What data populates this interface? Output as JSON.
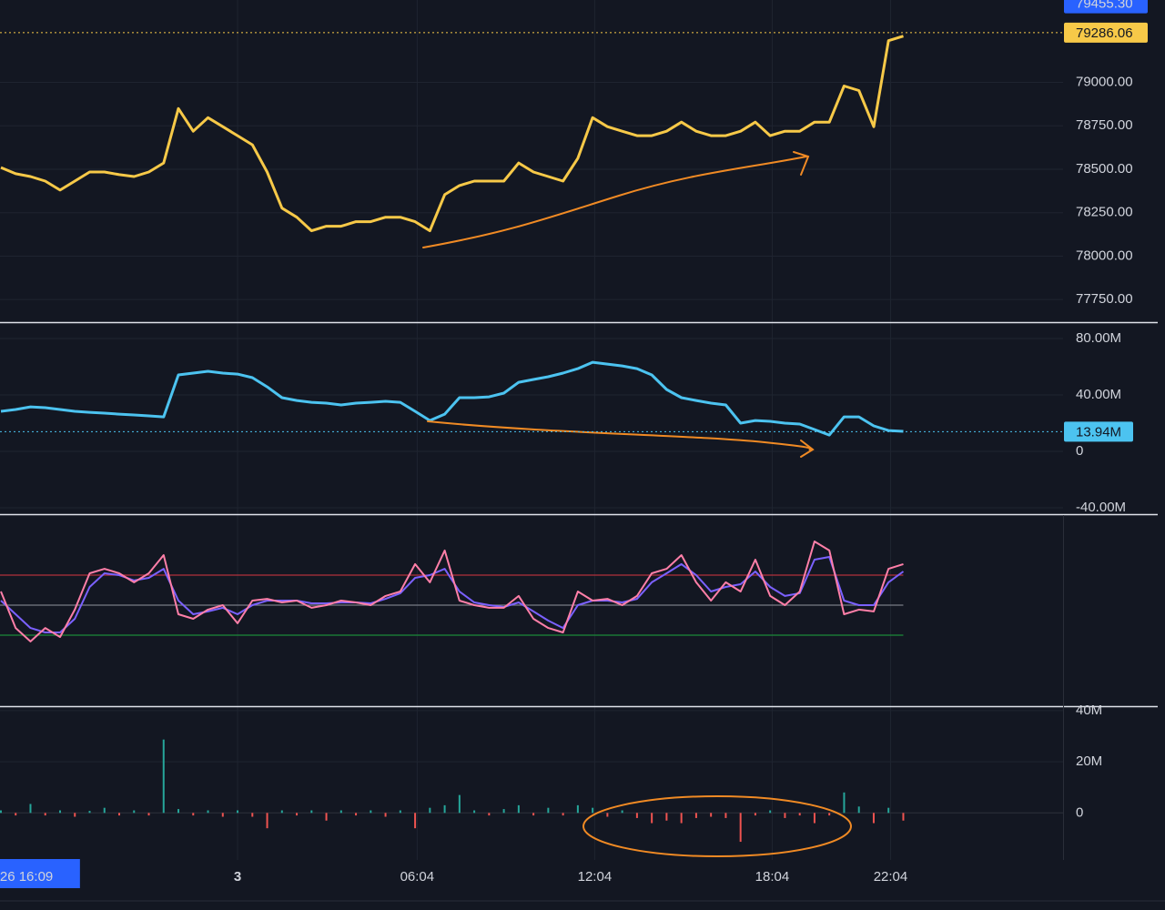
{
  "chart_data": [
    {
      "type": "line",
      "color": "#f7c948",
      "x": [
        -8,
        -7.5,
        -7,
        -6.5,
        -6,
        -5.5,
        -5,
        -4.5,
        -4,
        -3.5,
        -3,
        -2.5,
        -2,
        -1.5,
        -1,
        -0.5,
        0,
        0.5,
        1,
        1.5,
        2,
        2.5,
        3,
        3.5,
        4,
        4.5,
        5,
        5.5,
        6,
        6.5,
        7,
        7.5,
        8,
        8.5,
        9,
        9.5,
        10,
        10.5,
        11,
        11.5,
        12,
        12.5,
        13,
        13.5,
        14,
        14.5,
        15,
        15.5,
        16,
        16.5,
        17,
        17.5,
        18,
        18.5,
        19,
        19.5,
        20,
        20.5,
        21,
        21.5,
        22,
        22.5
      ],
      "values": [
        78510,
        78474,
        78458,
        78432,
        78380,
        78432,
        78484,
        78484,
        78469,
        78458,
        78484,
        78536,
        78849,
        78719,
        78797,
        78745,
        78693,
        78641,
        78484,
        78276,
        78224,
        78146,
        78172,
        78172,
        78198,
        78198,
        78224,
        78224,
        78198,
        78146,
        78354,
        78406,
        78432,
        78432,
        78432,
        78536,
        78484,
        78458,
        78432,
        78563,
        78797,
        78745,
        78719,
        78693,
        78693,
        78719,
        78771,
        78719,
        78693,
        78693,
        78719,
        78771,
        78693,
        78719,
        78719,
        78771,
        78771,
        78979,
        78953,
        78745,
        79240,
        79266
      ],
      "xlim": [
        -8.03,
        27.9
      ],
      "ylim": [
        77620,
        79474
      ],
      "yticks": [
        {
          "value": 77750,
          "label": "77750.00"
        },
        {
          "value": 78000,
          "label": "78000.00"
        },
        {
          "value": 78250,
          "label": "78250.00"
        },
        {
          "value": 78500,
          "label": "78500.00"
        },
        {
          "value": 78750,
          "label": "78750.00"
        },
        {
          "value": 79000,
          "label": "79000.00"
        }
      ],
      "grid": true,
      "current_value": 79286.06,
      "high_value": {
        "value": 79455.3,
        "label": "79455.30"
      }
    },
    {
      "type": "line",
      "color": "#4cc3f0",
      "x": [
        -8,
        -7.5,
        -7,
        -6.5,
        -6,
        -5.5,
        -5,
        -4.5,
        -4,
        -3.5,
        -3,
        -2.5,
        -2,
        -1.5,
        -1,
        -0.5,
        0,
        0.5,
        1,
        1.5,
        2,
        2.5,
        3,
        3.5,
        4,
        4.5,
        5,
        5.5,
        6,
        6.5,
        7,
        7.5,
        8,
        8.5,
        9,
        9.5,
        10,
        10.5,
        11,
        11.5,
        12,
        12.5,
        13,
        13.5,
        14,
        14.5,
        15,
        15.5,
        16,
        16.5,
        17,
        17.5,
        18,
        18.5,
        19,
        19.5,
        20,
        20.5,
        21,
        21.5,
        22,
        22.5
      ],
      "values": [
        28.4,
        29.7,
        31.6,
        31,
        29.7,
        28.4,
        27.7,
        27.1,
        26.4,
        25.8,
        25.2,
        24.5,
        54.2,
        55.5,
        56.8,
        55.5,
        54.8,
        52.3,
        45.8,
        38.1,
        36.1,
        34.8,
        34.2,
        32.9,
        34.2,
        34.8,
        35.5,
        34.8,
        28.4,
        21.9,
        26.4,
        38.1,
        38.1,
        38.7,
        41.3,
        49,
        51,
        52.9,
        55.5,
        58.7,
        63.2,
        61.9,
        60.6,
        58.7,
        54.2,
        43.9,
        38.1,
        36.1,
        34.2,
        32.9,
        20,
        21.9,
        21.3,
        20,
        19.4,
        15.5,
        11.6,
        24.5,
        24.5,
        18.1,
        14.8,
        14.2
      ],
      "xlim": [
        -8.03,
        27.9
      ],
      "ylim": [
        -44.5,
        91
      ],
      "yticks": [
        {
          "value": -40,
          "label": "-40.00M"
        },
        0,
        {
          "value": 40,
          "label": "40.00M"
        },
        {
          "value": 80,
          "label": "80.00M"
        }
      ],
      "grid": true,
      "current_value": {
        "value": 13.94,
        "label": "13.94M"
      }
    },
    {
      "type": "line",
      "x": [
        -8,
        -7.5,
        -7,
        -6.5,
        -6,
        -5.5,
        -5,
        -4.5,
        -4,
        -3.5,
        -3,
        -2.5,
        -2,
        -1.5,
        -1,
        -0.5,
        0,
        0.5,
        1,
        1.5,
        2,
        2.5,
        3,
        3.5,
        4,
        4.5,
        5,
        5.5,
        6,
        6.5,
        7,
        7.5,
        8,
        8.5,
        9,
        9.5,
        10,
        10.5,
        11,
        11.5,
        12,
        12.5,
        13,
        13.5,
        14,
        14.5,
        15,
        15.5,
        16,
        16.5,
        17,
        17.5,
        18,
        18.5,
        19,
        19.5,
        20,
        20.5,
        21,
        21.5,
        22,
        22.5
      ],
      "series": [
        {
          "color": "#7b61ff",
          "values": [
            53,
            43.9,
            34.8,
            31.8,
            31.8,
            40.9,
            62.1,
            71.2,
            70,
            66.4,
            68.2,
            74.2,
            53,
            43.9,
            45.8,
            48.2,
            43.9,
            50,
            53,
            53,
            53,
            51.2,
            51.2,
            51.8,
            51.8,
            51.2,
            54.2,
            57.9,
            68.2,
            70,
            74.2,
            59.1,
            51.8,
            50,
            48.8,
            51.8,
            45.8,
            39.7,
            34.8,
            50,
            53,
            53,
            51.8,
            54.2,
            65.2,
            71.2,
            77.3,
            70,
            59.1,
            62.1,
            63.9,
            72.4,
            62.1,
            56.1,
            57.9,
            80.3,
            82.1,
            53,
            50,
            50,
            65.2,
            72.4
          ]
        },
        {
          "color": "#ff7fa8",
          "values": [
            59.1,
            34.8,
            25.8,
            34.8,
            28.8,
            47,
            71.2,
            74.2,
            71.2,
            65.2,
            71.2,
            83.3,
            43.9,
            40.9,
            47,
            50,
            37.9,
            53,
            54.2,
            51.8,
            53,
            48.2,
            50,
            53,
            51.8,
            50,
            56.1,
            59.1,
            77.3,
            65.2,
            86.4,
            53,
            50,
            48.2,
            48.2,
            56.1,
            40.9,
            34.8,
            31.8,
            59.1,
            53,
            54.2,
            50,
            56.1,
            71.2,
            74.2,
            83.3,
            65.2,
            53,
            65.2,
            59.1,
            80.3,
            56.1,
            50,
            59.1,
            92.4,
            86.4,
            43.9,
            47,
            45.8,
            74.2,
            77.3
          ]
        }
      ],
      "xlim": [
        -8.03,
        27.9
      ],
      "ylim": [
        -17.3,
        110
      ],
      "levels": [
        {
          "value": 70,
          "color": "#b2313d"
        },
        {
          "value": 50,
          "color": "#787b86"
        },
        {
          "value": 30,
          "color": "#1b8a3a"
        }
      ]
    },
    {
      "type": "bar",
      "up_color": "#26a69a",
      "down_color": "#ef5350",
      "x": [
        -8,
        -7.5,
        -7,
        -6.5,
        -6,
        -5.5,
        -5,
        -4.5,
        -4,
        -3.5,
        -3,
        -2.5,
        -2,
        -1.5,
        -1,
        -0.5,
        0,
        0.5,
        1,
        1.5,
        2,
        2.5,
        3,
        3.5,
        4,
        4.5,
        5,
        5.5,
        6,
        6.5,
        7,
        7.5,
        8,
        8.5,
        9,
        9.5,
        10,
        10.5,
        11,
        11.5,
        12,
        12.5,
        13,
        13.5,
        14,
        14.5,
        15,
        15.5,
        16,
        16.5,
        17,
        17.5,
        18,
        18.5,
        19,
        19.5,
        20,
        20.5,
        21,
        21.5,
        22,
        22.5
      ],
      "values": [
        1,
        -1,
        3.5,
        -1,
        1,
        -1.5,
        0.8,
        2,
        -1,
        1,
        -1,
        28.7,
        1.5,
        -1,
        1,
        -1.5,
        1,
        -1.5,
        -6,
        1,
        -1,
        1,
        -3,
        1,
        -1,
        1,
        -1.5,
        1,
        -6,
        2,
        3,
        7,
        1,
        -1,
        1.5,
        3,
        -1,
        2,
        -1,
        3,
        2,
        -1.5,
        1,
        -2,
        -4,
        -3,
        -4,
        -2,
        -1.5,
        -2,
        -11.3,
        -1,
        1,
        -2,
        -1,
        -4,
        -1,
        8,
        2.5,
        -4,
        2,
        -3
      ],
      "xlim": [
        -8.03,
        27.9
      ],
      "ylim": [
        -18.4,
        41.4
      ],
      "yticks": [
        0,
        {
          "value": 20,
          "label": "20M"
        },
        {
          "value": 40,
          "label": "40M"
        }
      ],
      "xticks": [
        {
          "value": 0,
          "label": "3"
        },
        {
          "value": 6.07,
          "label": "06:04"
        },
        {
          "value": 12.07,
          "label": "12:04"
        },
        {
          "value": 18.07,
          "label": "18:04"
        },
        {
          "value": 22.07,
          "label": "22:04"
        }
      ],
      "grid": true,
      "crosshair": {
        "value": -7.85,
        "label": "26  16:09"
      }
    }
  ]
}
